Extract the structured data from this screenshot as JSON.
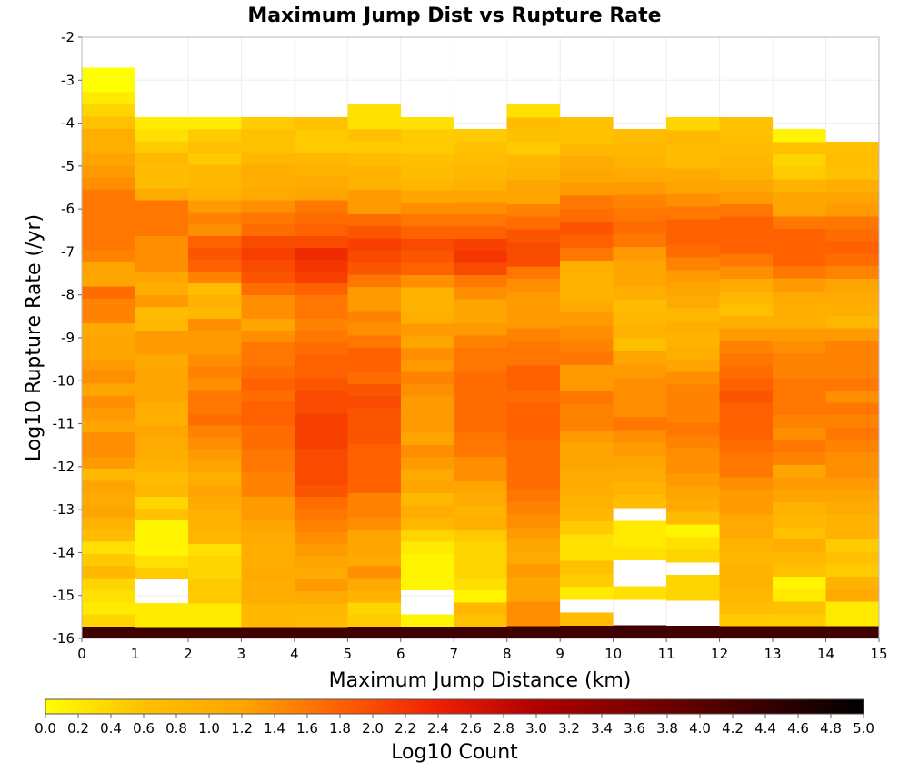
{
  "chart_data": {
    "type": "heatmap",
    "title": "Maximum Jump Dist vs Rupture Rate",
    "xlabel": "Maximum Jump Distance (km)",
    "ylabel": "Log10 Rupture Rate (/yr)",
    "xlim": [
      0,
      15
    ],
    "ylim": [
      -16,
      -2
    ],
    "x_ticks": [
      "0",
      "1",
      "2",
      "3",
      "4",
      "5",
      "6",
      "7",
      "8",
      "9",
      "10",
      "11",
      "12",
      "13",
      "14",
      "15"
    ],
    "y_ticks": [
      "-2",
      "-3",
      "-4",
      "-5",
      "-6",
      "-7",
      "-8",
      "-9",
      "-10",
      "-11",
      "-12",
      "-13",
      "-14",
      "-15",
      "-16"
    ],
    "x_bin_width": 1,
    "y_bin_width": 0.2857,
    "y_bin_start": -16,
    "grid": true,
    "colorbar": {
      "label": "Log10 Count",
      "min": 0.0,
      "max": 5.0,
      "ticks": [
        "0.0",
        "0.2",
        "0.4",
        "0.6",
        "0.8",
        "1.0",
        "1.2",
        "1.4",
        "1.6",
        "1.8",
        "2.0",
        "2.2",
        "2.4",
        "2.6",
        "2.8",
        "3.0",
        "3.2",
        "3.4",
        "3.6",
        "3.8",
        "4.0",
        "4.2",
        "4.4",
        "4.6",
        "4.8",
        "5.0"
      ],
      "stops": [
        {
          "v": 0.0,
          "color": "#ffff00"
        },
        {
          "v": 0.6,
          "color": "#ffc000"
        },
        {
          "v": 1.2,
          "color": "#ffa500"
        },
        {
          "v": 1.8,
          "color": "#ff6000"
        },
        {
          "v": 2.4,
          "color": "#ee2000"
        },
        {
          "v": 3.0,
          "color": "#b00000"
        },
        {
          "v": 4.0,
          "color": "#5a0000"
        },
        {
          "v": 5.0,
          "color": "#000000"
        }
      ]
    },
    "columns": [
      {
        "x0": 0,
        "y_top": -2.71,
        "values": [
          4.3,
          0.4,
          0.2,
          0.3,
          0.4,
          0.8,
          0.5,
          0.3,
          0.7,
          0.9,
          1.2,
          1.1,
          1.2,
          0.8,
          1.3,
          1.4,
          1.4,
          1.2,
          1.3,
          1.4,
          1.2,
          1.4,
          1.3,
          1.2,
          1.2,
          1.1,
          1.5,
          1.5,
          1.7,
          1.2,
          1.2,
          1.5,
          1.6,
          1.6,
          1.6,
          1.6,
          1.6,
          1.4,
          1.3,
          1.2,
          1.0,
          1.0,
          0.6,
          0.4,
          0.2,
          0.0,
          0.0
        ]
      },
      {
        "x0": 1,
        "y_top": -3.86,
        "values": [
          4.3,
          0.2,
          0.2,
          null,
          null,
          0.5,
          0.3,
          0.1,
          0.1,
          0.1,
          0.6,
          0.4,
          0.8,
          0.7,
          0.9,
          1.0,
          1.1,
          1.2,
          1.0,
          1.0,
          1.2,
          1.2,
          1.2,
          1.1,
          1.3,
          1.3,
          0.8,
          0.7,
          1.3,
          1.0,
          1.2,
          1.4,
          1.4,
          1.4,
          1.6,
          1.6,
          1.6,
          1.1,
          0.7,
          0.7,
          0.8,
          0.5,
          0.3,
          0.2
        ]
      },
      {
        "x0": 2,
        "y_top": -3.86,
        "values": [
          4.3,
          0.2,
          0.2,
          0.5,
          0.5,
          0.4,
          0.4,
          0.3,
          0.8,
          0.9,
          0.9,
          1.1,
          1.2,
          1.0,
          1.2,
          1.3,
          1.4,
          1.5,
          1.7,
          1.6,
          1.6,
          1.4,
          1.5,
          1.4,
          1.3,
          1.3,
          1.4,
          0.8,
          0.9,
          0.7,
          1.5,
          1.8,
          1.9,
          1.8,
          1.4,
          1.5,
          1.3,
          0.9,
          0.8,
          0.8,
          0.5,
          0.6,
          0.5,
          0.2
        ]
      },
      {
        "x0": 3,
        "y_top": -3.86,
        "values": [
          4.3,
          0.8,
          0.8,
          1.0,
          1.0,
          1.1,
          1.0,
          1.0,
          1.1,
          1.2,
          1.3,
          1.3,
          1.5,
          1.5,
          1.6,
          1.6,
          1.7,
          1.7,
          1.8,
          1.8,
          1.7,
          1.8,
          1.7,
          1.6,
          1.6,
          1.4,
          1.2,
          1.4,
          1.4,
          1.7,
          1.9,
          2.0,
          2.1,
          2.0,
          1.7,
          1.6,
          1.4,
          1.1,
          1.0,
          1.0,
          0.8,
          0.6,
          0.6,
          0.5
        ]
      },
      {
        "x0": 4,
        "y_top": -3.86,
        "values": [
          4.3,
          0.7,
          0.8,
          1.1,
          1.3,
          1.1,
          1.2,
          1.3,
          1.4,
          1.5,
          1.6,
          1.7,
          1.9,
          2.0,
          2.0,
          2.0,
          2.1,
          2.1,
          2.1,
          2.0,
          2.0,
          1.9,
          1.8,
          1.8,
          1.7,
          1.6,
          1.5,
          1.6,
          1.6,
          1.8,
          2.1,
          2.2,
          2.3,
          2.0,
          1.8,
          1.7,
          1.6,
          1.2,
          1.1,
          0.9,
          0.8,
          0.5,
          0.5,
          0.6
        ]
      },
      {
        "x0": 5,
        "y_top": -3.57,
        "values": [
          4.3,
          0.5,
          0.4,
          0.9,
          1.1,
          1.4,
          1.1,
          1.2,
          1.2,
          1.4,
          1.5,
          1.5,
          1.8,
          1.8,
          1.8,
          1.8,
          1.9,
          1.9,
          1.9,
          2.0,
          1.9,
          1.7,
          1.8,
          1.8,
          1.6,
          1.4,
          1.5,
          1.3,
          1.3,
          1.6,
          1.9,
          2.0,
          2.1,
          1.9,
          1.7,
          1.3,
          1.3,
          0.9,
          0.9,
          0.7,
          0.5,
          0.6,
          0.3,
          0.3
        ]
      },
      {
        "x0": 6,
        "y_top": -3.86,
        "values": [
          4.3,
          0.1,
          null,
          null,
          0.1,
          0.1,
          0.1,
          0.2,
          0.4,
          0.8,
          1.0,
          0.8,
          1.2,
          1.1,
          1.3,
          1.4,
          1.2,
          1.3,
          1.3,
          1.3,
          1.4,
          1.5,
          1.3,
          1.4,
          1.2,
          1.3,
          1.0,
          0.9,
          0.9,
          1.4,
          1.8,
          1.9,
          2.0,
          1.8,
          1.6,
          1.4,
          1.2,
          0.8,
          0.7,
          0.6,
          0.5,
          0.5,
          0.3
        ]
      },
      {
        "x0": 7,
        "y_top": -4.14,
        "values": [
          4.3,
          0.6,
          0.8,
          0.1,
          0.3,
          0.4,
          0.4,
          0.4,
          0.5,
          1.0,
          0.9,
          1.1,
          1.2,
          1.4,
          1.4,
          1.6,
          1.6,
          1.7,
          1.7,
          1.7,
          1.7,
          1.7,
          1.6,
          1.6,
          1.5,
          1.3,
          1.2,
          1.2,
          1.4,
          1.6,
          2.0,
          2.2,
          2.1,
          1.8,
          1.6,
          1.4,
          1.2,
          0.9,
          0.8,
          0.7,
          0.6,
          0.5
        ]
      },
      {
        "x0": 8,
        "y_top": -3.57,
        "values": [
          4.3,
          1.4,
          1.4,
          1.2,
          1.2,
          1.3,
          1.1,
          1.2,
          1.3,
          1.4,
          1.5,
          1.6,
          1.7,
          1.7,
          1.7,
          1.7,
          1.8,
          1.8,
          1.8,
          1.7,
          1.8,
          1.8,
          1.6,
          1.6,
          1.5,
          1.3,
          1.3,
          1.3,
          1.4,
          1.6,
          2.0,
          2.0,
          1.9,
          1.7,
          1.5,
          1.2,
          1.2,
          0.9,
          0.8,
          0.5,
          0.6,
          0.7,
          0.3
        ]
      },
      {
        "x0": 9,
        "y_top": -3.86,
        "values": [
          4.3,
          0.7,
          null,
          0.2,
          0.5,
          0.6,
          0.3,
          0.3,
          0.5,
          0.8,
          0.9,
          1.0,
          1.1,
          1.2,
          1.2,
          1.3,
          1.5,
          1.5,
          1.6,
          1.3,
          1.3,
          1.6,
          1.5,
          1.4,
          1.3,
          1.1,
          0.9,
          0.9,
          1.0,
          1.6,
          1.8,
          1.9,
          1.7,
          1.6,
          1.3,
          1.2,
          1.1,
          0.8,
          0.6,
          0.6
        ]
      },
      {
        "x0": 10,
        "y_top": -4.14,
        "values": [
          4.3,
          null,
          null,
          0.3,
          null,
          null,
          0.3,
          0.2,
          0.2,
          null,
          0.7,
          0.9,
          1.1,
          1.2,
          1.3,
          1.4,
          1.6,
          1.4,
          1.4,
          1.4,
          1.3,
          1.2,
          0.6,
          0.9,
          0.8,
          0.7,
          1.0,
          1.2,
          1.2,
          1.3,
          1.6,
          1.7,
          1.6,
          1.5,
          1.3,
          1.1,
          0.9,
          0.8,
          0.7
        ]
      },
      {
        "x0": 11,
        "y_top": -3.86,
        "values": [
          4.3,
          null,
          null,
          0.4,
          0.4,
          null,
          0.4,
          0.3,
          0.1,
          0.7,
          1.1,
          1.2,
          1.3,
          1.4,
          1.4,
          1.5,
          1.6,
          1.5,
          1.5,
          1.5,
          1.4,
          1.2,
          1.0,
          0.9,
          1.0,
          0.8,
          1.1,
          1.2,
          1.3,
          1.5,
          1.7,
          1.8,
          1.8,
          1.6,
          1.4,
          1.2,
          1.1,
          0.7,
          0.7,
          0.8,
          0.4
        ]
      },
      {
        "x0": 12,
        "y_top": -3.86,
        "values": [
          4.3,
          0.5,
          0.7,
          0.8,
          0.9,
          0.9,
          0.8,
          0.9,
          1.1,
          1.1,
          1.3,
          1.3,
          1.4,
          1.6,
          1.6,
          1.7,
          1.8,
          1.8,
          1.8,
          1.9,
          1.8,
          1.7,
          1.6,
          1.5,
          1.3,
          1.0,
          0.6,
          0.8,
          1.1,
          1.4,
          1.6,
          1.8,
          1.8,
          1.8,
          1.6,
          1.3,
          1.2,
          0.9,
          0.8,
          0.7,
          0.6,
          0.6
        ]
      },
      {
        "x0": 13,
        "y_top": -4.14,
        "values": [
          4.3,
          0.5,
          0.6,
          0.2,
          0.1,
          0.6,
          0.8,
          1.0,
          0.6,
          0.8,
          0.9,
          1.2,
          1.3,
          1.2,
          1.5,
          1.6,
          1.4,
          1.5,
          1.6,
          1.6,
          1.6,
          1.5,
          1.5,
          1.4,
          1.3,
          1.0,
          1.0,
          1.1,
          1.3,
          1.6,
          1.8,
          1.8,
          1.8,
          1.6,
          1.2,
          1.2,
          0.9,
          0.5,
          0.4,
          0.6,
          0.1
        ]
      },
      {
        "x0": 14,
        "y_top": -4.43,
        "values": [
          4.3,
          0.2,
          0.2,
          1.1,
          0.9,
          0.5,
          0.6,
          0.5,
          0.9,
          0.9,
          1.1,
          1.2,
          1.3,
          1.4,
          1.4,
          1.5,
          1.6,
          1.5,
          1.6,
          1.4,
          1.6,
          1.5,
          1.5,
          1.5,
          1.3,
          0.8,
          1.0,
          1.1,
          1.2,
          1.5,
          1.7,
          1.8,
          1.7,
          1.6,
          1.3,
          1.2,
          1.0,
          0.6,
          0.7,
          0.6
        ]
      }
    ]
  }
}
